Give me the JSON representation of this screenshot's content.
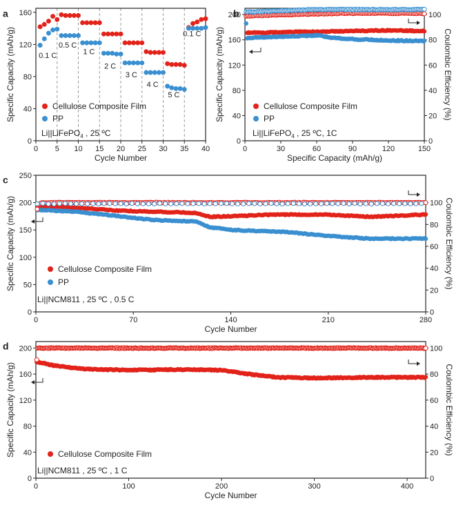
{
  "colors": {
    "red": "#e2231a",
    "blue": "#3a8fd0",
    "axis": "#222222",
    "dash": "#9a9a9a"
  },
  "chart_data": [
    {
      "panel": "a",
      "type": "scatter",
      "xlabel": "Cycle Number",
      "ylabel": "Specific Capacity (mAh/g)",
      "xlim": [
        0,
        40
      ],
      "ylim": [
        0,
        165
      ],
      "xticks": [
        0,
        5,
        10,
        15,
        20,
        25,
        30,
        35,
        40
      ],
      "yticks": [
        0,
        40,
        80,
        120,
        160
      ],
      "dashed_x": [
        5,
        10,
        15,
        20,
        25,
        30,
        35
      ],
      "rate_labels": [
        {
          "text": "0.1 C",
          "x": 2.8,
          "y": 103
        },
        {
          "text": "0.5 C",
          "x": 7.5,
          "y": 116
        },
        {
          "text": "1 C",
          "x": 12.5,
          "y": 108
        },
        {
          "text": "2 C",
          "x": 17.5,
          "y": 90
        },
        {
          "text": "3 C",
          "x": 22.5,
          "y": 79
        },
        {
          "text": "4 C",
          "x": 27.5,
          "y": 67
        },
        {
          "text": "5 C",
          "x": 32.5,
          "y": 54
        },
        {
          "text": "0.1 C",
          "x": 36.8,
          "y": 130
        }
      ],
      "legend": {
        "entries": [
          "Cellulose Composite Film",
          "PP"
        ],
        "condition": [
          "Li||LiFePO",
          "4",
          " , 25 ºC"
        ]
      },
      "series": [
        {
          "name": "Cellulose Composite Film",
          "color": "red",
          "x": [
            1,
            2,
            3,
            4,
            5,
            6,
            7,
            8,
            9,
            10,
            11,
            12,
            13,
            14,
            15,
            16,
            17,
            18,
            19,
            20,
            21,
            22,
            23,
            24,
            25,
            26,
            27,
            28,
            29,
            30,
            31,
            32,
            33,
            34,
            35,
            36,
            37,
            38,
            39,
            40
          ],
          "y": [
            142,
            145,
            149,
            155,
            151,
            157,
            156,
            156,
            156,
            156,
            147,
            147,
            147,
            147,
            147,
            133,
            133,
            133,
            133,
            133,
            122,
            122,
            122,
            122,
            122,
            111,
            110,
            110,
            110,
            110,
            96,
            95,
            95,
            95,
            94,
            141,
            146,
            148,
            151,
            152
          ]
        },
        {
          "name": "PP",
          "color": "blue",
          "x": [
            1,
            2,
            3,
            4,
            5,
            6,
            7,
            8,
            9,
            10,
            11,
            12,
            13,
            14,
            15,
            16,
            17,
            18,
            19,
            20,
            21,
            22,
            23,
            24,
            25,
            26,
            27,
            28,
            29,
            30,
            31,
            32,
            33,
            34,
            35,
            36,
            37,
            38,
            39,
            40
          ],
          "y": [
            119,
            127,
            134,
            138,
            139,
            131,
            131,
            131,
            131,
            131,
            122,
            122,
            122,
            122,
            122,
            109,
            109,
            109,
            108,
            108,
            97,
            97,
            97,
            97,
            97,
            85,
            85,
            85,
            85,
            85,
            68,
            66,
            65,
            65,
            64,
            140,
            140,
            140,
            140,
            141
          ]
        }
      ]
    },
    {
      "panel": "b",
      "type": "scatter",
      "xlabel": "Specific Capacity (mAh/g)",
      "ylabel": "Specific Capacity (mAh/g)",
      "ylabel2": "Coulombic Efficiency (%)",
      "xlim": [
        0,
        150
      ],
      "ylim": [
        0,
        210
      ],
      "y2lim": [
        0,
        105
      ],
      "xticks": [
        0,
        30,
        60,
        90,
        120,
        150
      ],
      "yticks": [
        0,
        40,
        80,
        120,
        160,
        200
      ],
      "y2ticks": [
        0,
        20,
        40,
        60,
        80,
        100
      ],
      "legend": {
        "entries": [
          "Cellulose Composite Film",
          "PP"
        ],
        "condition": [
          "Li||LiFePO",
          "4",
          " , 25 ºC,   1C"
        ]
      },
      "series": [
        {
          "name": "Cellulose Composite Film capacity",
          "color": "red",
          "axis": "left",
          "x0": 1,
          "x1": 150,
          "step": 1,
          "profile": [
            [
              1,
              171
            ],
            [
              30,
              172
            ],
            [
              60,
              173
            ],
            [
              90,
              174
            ],
            [
              120,
              175
            ],
            [
              150,
              174
            ]
          ],
          "first": 203
        },
        {
          "name": "PP capacity",
          "color": "blue",
          "axis": "left",
          "x0": 1,
          "x1": 150,
          "step": 1,
          "profile": [
            [
              1,
              163
            ],
            [
              30,
              165
            ],
            [
              60,
              167
            ],
            [
              75,
              163
            ],
            [
              90,
              161
            ],
            [
              120,
              159
            ],
            [
              150,
              158
            ]
          ],
          "first": 186
        },
        {
          "name": "Cellulose Composite Film CE",
          "color": "red",
          "axis": "right",
          "hollow": true,
          "x0": 1,
          "x1": 150,
          "step": 1,
          "profile": [
            [
              1,
              99
            ],
            [
              40,
              100
            ],
            [
              80,
              101
            ],
            [
              150,
              101
            ]
          ]
        },
        {
          "name": "PP CE",
          "color": "blue",
          "axis": "right",
          "hollow": true,
          "x0": 1,
          "x1": 150,
          "step": 1,
          "profile": [
            [
              1,
              102
            ],
            [
              60,
              104
            ],
            [
              120,
              104
            ],
            [
              150,
              104
            ]
          ]
        }
      ]
    },
    {
      "panel": "c",
      "type": "scatter",
      "xlabel": "Cycle Number",
      "ylabel": "Specific Capacity (mAh/g)",
      "ylabel2": "Coulombic Efficiency (%)",
      "xlim": [
        0,
        280
      ],
      "ylim": [
        0,
        250
      ],
      "y2lim": [
        0,
        125
      ],
      "xticks": [
        0,
        70,
        140,
        210,
        280
      ],
      "yticks": [
        0,
        50,
        100,
        150,
        200,
        250
      ],
      "y2ticks": [
        0,
        20,
        40,
        60,
        80,
        100
      ],
      "legend": {
        "entries": [
          "Cellulose Composite Film",
          "PP"
        ],
        "condition": [
          "Li||NCM811 , 25 ºC , 0.5 C"
        ]
      },
      "series": [
        {
          "name": "Cellulose Composite Film capacity",
          "color": "red",
          "axis": "left",
          "x0": 1,
          "x1": 280,
          "step": 1,
          "profile": [
            [
              1,
              193
            ],
            [
              20,
              192
            ],
            [
              40,
              189
            ],
            [
              60,
              185
            ],
            [
              90,
              183
            ],
            [
              115,
              181
            ],
            [
              125,
              174
            ],
            [
              140,
              175
            ],
            [
              170,
              178
            ],
            [
              210,
              178
            ],
            [
              240,
              174
            ],
            [
              260,
              176
            ],
            [
              280,
              178
            ]
          ]
        },
        {
          "name": "PP capacity",
          "color": "blue",
          "axis": "left",
          "x0": 1,
          "x1": 280,
          "step": 1,
          "profile": [
            [
              1,
              187
            ],
            [
              30,
              183
            ],
            [
              60,
              175
            ],
            [
              85,
              168
            ],
            [
              115,
              165
            ],
            [
              125,
              155
            ],
            [
              140,
              150
            ],
            [
              180,
              146
            ],
            [
              210,
              139
            ],
            [
              240,
              134
            ],
            [
              280,
              134
            ]
          ]
        },
        {
          "name": "Cellulose Composite Film CE",
          "color": "red",
          "axis": "right",
          "hollow": true,
          "x0": 1,
          "x1": 280,
          "step": 1,
          "profile": [
            [
              1,
              98
            ],
            [
              5,
              100
            ],
            [
              280,
              100
            ]
          ],
          "first": 94
        },
        {
          "name": "PP CE",
          "color": "blue",
          "axis": "right",
          "hollow": true,
          "x0": 1,
          "x1": 280,
          "step": 4,
          "profile": [
            [
              1,
              99
            ],
            [
              280,
              99
            ]
          ]
        }
      ]
    },
    {
      "panel": "d",
      "type": "scatter",
      "xlabel": "Cycle Number",
      "ylabel": "Specific Capacity (mAh/g)",
      "ylabel2": "Coulombic Efficiency (%)",
      "xlim": [
        0,
        420
      ],
      "ylim": [
        0,
        210
      ],
      "y2lim": [
        0,
        105
      ],
      "xticks": [
        0,
        100,
        200,
        300,
        400
      ],
      "yticks": [
        0,
        40,
        80,
        120,
        160,
        200
      ],
      "y2ticks": [
        0,
        20,
        40,
        60,
        80,
        100
      ],
      "legend": {
        "entries": [
          "Cellulose Composite Film"
        ],
        "condition": [
          "Li||NCM811 , 25 ºC , 1 C"
        ]
      },
      "series": [
        {
          "name": "Cellulose Composite Film capacity",
          "color": "red",
          "axis": "left",
          "x0": 1,
          "x1": 420,
          "step": 1,
          "profile": [
            [
              1,
              179
            ],
            [
              20,
              173
            ],
            [
              50,
              168
            ],
            [
              100,
              166
            ],
            [
              150,
              167
            ],
            [
              200,
              166
            ],
            [
              230,
              160
            ],
            [
              260,
              155
            ],
            [
              300,
              154
            ],
            [
              360,
              155
            ],
            [
              420,
              155
            ]
          ]
        },
        {
          "name": "Cellulose Composite Film CE",
          "color": "red",
          "axis": "right",
          "hollow": true,
          "x0": 1,
          "x1": 420,
          "step": 1,
          "profile": [
            [
              1,
              100
            ],
            [
              420,
              100
            ]
          ],
          "first": 91
        }
      ]
    }
  ]
}
